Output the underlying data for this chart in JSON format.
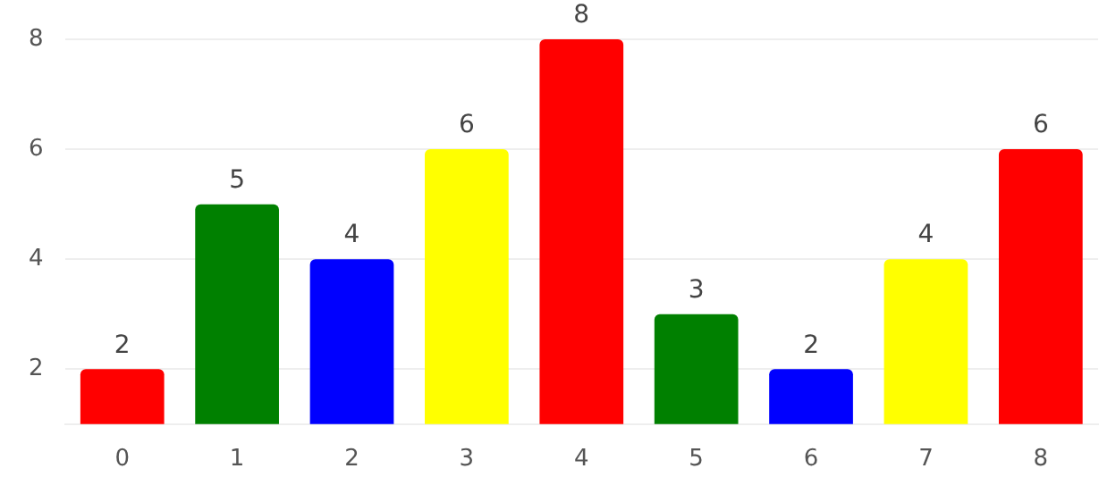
{
  "chart_data": {
    "type": "bar",
    "categories": [
      "0",
      "1",
      "2",
      "3",
      "4",
      "5",
      "6",
      "7",
      "8"
    ],
    "values": [
      2,
      5,
      4,
      6,
      8,
      3,
      2,
      4,
      6
    ],
    "colors": [
      "#ff0000",
      "#008000",
      "#0000ff",
      "#ffff00",
      "#ff0000",
      "#008000",
      "#0000ff",
      "#ffff00",
      "#ff0000"
    ],
    "ylim": [
      1,
      8
    ],
    "yticks": [
      2,
      4,
      6,
      8
    ],
    "grid": "y",
    "data_labels": true,
    "legend": false
  }
}
